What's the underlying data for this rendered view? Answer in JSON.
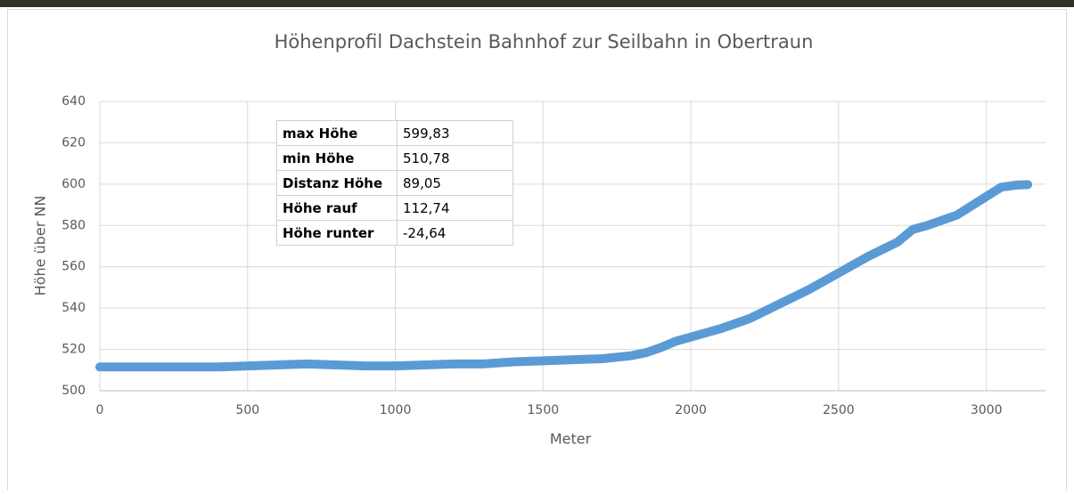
{
  "chart_data": {
    "type": "line",
    "title": "Höhenprofil Dachstein Bahnhof zur Seilbahn in Obertraun",
    "x_label": "Meter",
    "y_label": "Höhe über NN",
    "x": [
      0,
      100,
      200,
      300,
      400,
      500,
      600,
      700,
      800,
      900,
      1000,
      1100,
      1200,
      1300,
      1400,
      1500,
      1600,
      1700,
      1800,
      1850,
      1900,
      1950,
      2000,
      2100,
      2200,
      2300,
      2400,
      2500,
      2600,
      2700,
      2750,
      2800,
      2900,
      3000,
      3050,
      3100,
      3140
    ],
    "series": [
      {
        "color": "#5b9bd5",
        "values": [
          511.5,
          511.5,
          511.5,
          511.5,
          511.5,
          512,
          512.5,
          513,
          512.5,
          512,
          512,
          512.5,
          513,
          513,
          514,
          514.5,
          515,
          515.5,
          517,
          518.5,
          521,
          524,
          526,
          530,
          535,
          542,
          549,
          557,
          565,
          572,
          578,
          580,
          585,
          594,
          598.5,
          599.5,
          599.8
        ]
      }
    ],
    "xlim": [
      0,
      3200
    ],
    "xticks": [
      0,
      500,
      1000,
      1500,
      2000,
      2500,
      3000
    ],
    "ylim": [
      500,
      640
    ],
    "yticks": [
      500,
      520,
      540,
      560,
      580,
      600,
      620,
      640
    ],
    "grid": true
  },
  "table": {
    "rows": [
      [
        "max Höhe",
        "599,83"
      ],
      [
        "min Höhe",
        "510,78"
      ],
      [
        "Distanz Höhe",
        "89,05"
      ],
      [
        "Höhe rauf",
        "112,74"
      ],
      [
        "Höhe runter",
        "-24,64"
      ]
    ]
  }
}
